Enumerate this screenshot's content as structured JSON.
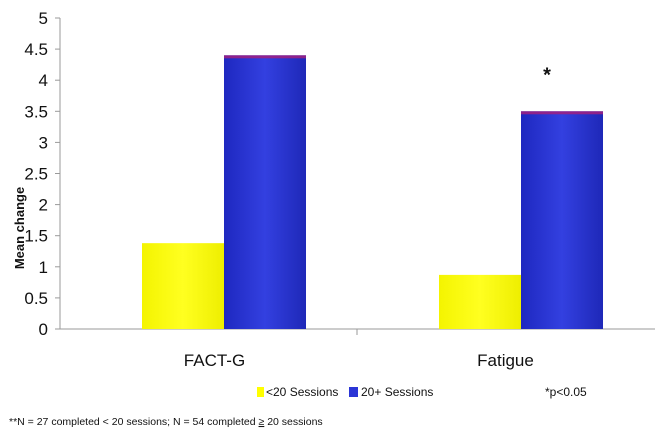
{
  "chart_data": {
    "type": "bar",
    "ylabel": "Mean change",
    "ylim": [
      0,
      5
    ],
    "yticks": [
      0,
      0.5,
      1,
      1.5,
      2,
      2.5,
      3,
      3.5,
      4,
      4.5,
      5
    ],
    "ytick_labels": [
      "0",
      "0.5",
      "1",
      "1.5",
      "2",
      "2.5",
      "3",
      "3.5",
      "4",
      "4.5",
      "5"
    ],
    "categories": [
      "FACT-G",
      "Fatigue"
    ],
    "series": [
      {
        "name": "<20 Sessions",
        "values": [
          1.38,
          0.87
        ],
        "color": "#ffff00"
      },
      {
        "name": "20+ Sessions",
        "values": [
          4.4,
          3.5
        ],
        "color": "#2b35d6"
      }
    ],
    "annotations": [
      {
        "text": "*",
        "category": "Fatigue"
      }
    ],
    "grid": false,
    "legend_position": "bottom"
  },
  "significance_note": "*p<0.05",
  "footnote": {
    "before": "**N = 27 completed < 20 sessions; N = 54 completed ",
    "symbol": "≥",
    "after": " 20 sessions"
  }
}
